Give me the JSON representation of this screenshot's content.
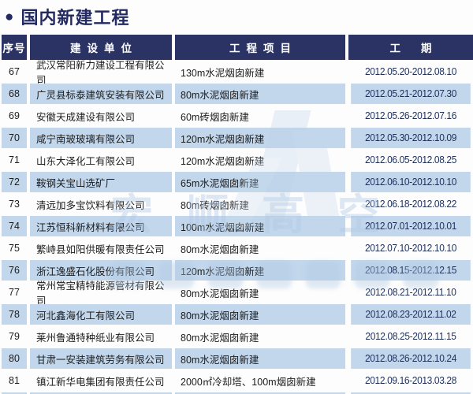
{
  "page": {
    "title": "国内新建工程",
    "bullet": "●"
  },
  "table": {
    "headers": [
      "序号",
      "建设单位",
      "工程项目",
      "工期"
    ],
    "rows": [
      {
        "no": "67",
        "company": "武汉常阳新力建设工程有限公司",
        "project": "130m水泥烟囱新建",
        "period": "2012.05.20-2012.08.10"
      },
      {
        "no": "68",
        "company": "广灵县标泰建筑安装有限公司",
        "project": "80m水泥烟囱新建",
        "period": "2012.05.21-2012.07.30"
      },
      {
        "no": "69",
        "company": "安徽天成建设有限公司",
        "project": "60m砖烟囱新建",
        "period": "2012.05.26-2012.07.16"
      },
      {
        "no": "70",
        "company": "咸宁南玻玻璃有限公司",
        "project": "120m水泥烟囱新建",
        "period": "2012.05.30-2012.10.09"
      },
      {
        "no": "71",
        "company": "山东大泽化工有限公司",
        "project": "120m水泥烟囱新建",
        "period": "2012.06.05-2012.08.25"
      },
      {
        "no": "72",
        "company": "鞍钢关宝山选矿厂",
        "project": "65m水泥烟囱新建",
        "period": "2012.06.10-2012.10.10"
      },
      {
        "no": "73",
        "company": "清远加多宝饮料有限公司",
        "project": "80m砖烟囱新建",
        "period": "2012.06.18-2012.08.22"
      },
      {
        "no": "74",
        "company": "江苏恒科新材料有限公司",
        "project": "100m水泥烟囱新建",
        "period": "2012.07.01-2012.10.01"
      },
      {
        "no": "75",
        "company": "繁峙县如阳供暖有限责任公司",
        "project": "80m水泥烟囱新建",
        "period": "2012.07.10-2012.10.10"
      },
      {
        "no": "76",
        "company": "浙江逸盛石化股份有限公司",
        "project": "120m水泥烟囱新建",
        "period": "2012.08.15-2012.12.15"
      },
      {
        "no": "77",
        "company": "常州常宝精特能源管材有限公司",
        "project": "80m水泥烟囱新建",
        "period": "2012.08.21-2012.11.10"
      },
      {
        "no": "78",
        "company": "河北鑫海化工有限公司",
        "project": "80m水泥烟囱新建",
        "period": "2012.08.23-2012.11.02"
      },
      {
        "no": "79",
        "company": "莱州鲁通特种纸业有限公司",
        "project": "80m水泥烟囱新建",
        "period": "2012.08.25-2012.11.15"
      },
      {
        "no": "80",
        "company": "甘肃一安装建筑劳务有限公司",
        "project": "80m水泥烟囱新建",
        "period": "2012.08.26-2012.10.24"
      },
      {
        "no": "81",
        "company": "镇江新华电集团有限责任公司",
        "project": "2000㎡冷却塔、100m烟囱新建",
        "period": "2012.09.16-2013.03.28"
      }
    ]
  },
  "watermark": {
    "text": "宏顺高空"
  },
  "colors": {
    "header_bg": "#2b3264",
    "alt_row_bg": "#c2d7ec",
    "title_color": "#232a62",
    "date_color": "#1e3059"
  }
}
